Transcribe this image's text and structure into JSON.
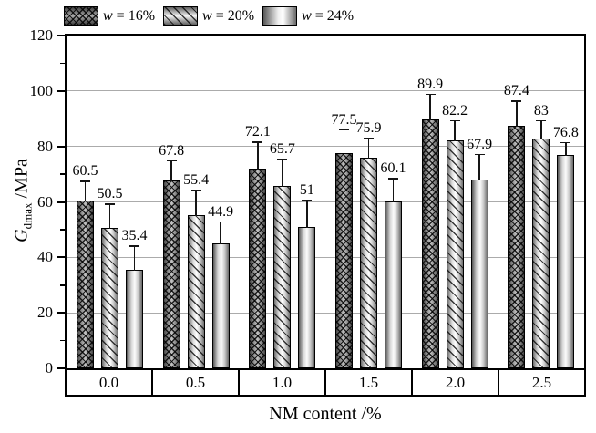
{
  "chart_data": {
    "type": "bar",
    "title": "",
    "xlabel": "NM content /%",
    "ylabel": {
      "main": "G",
      "sub": "dmax",
      "unit": " /MPa"
    },
    "categories": [
      "0.0",
      "0.5",
      "1.0",
      "1.5",
      "2.0",
      "2.5"
    ],
    "series": [
      {
        "name": "w = 16%",
        "pattern": "crosshatch",
        "values": [
          60.5,
          67.8,
          72.1,
          77.5,
          89.9,
          87.4
        ],
        "labels": [
          "60.5",
          "67.8",
          "72.1",
          "77.5",
          "89.9",
          "87.4"
        ],
        "errors": [
          7,
          7,
          9.5,
          8.5,
          9,
          9
        ]
      },
      {
        "name": "w = 20%",
        "pattern": "diagonal",
        "values": [
          50.5,
          55.4,
          65.7,
          75.9,
          82.2,
          83
        ],
        "labels": [
          "50.5",
          "55.4",
          "65.7",
          "75.9",
          "82.2",
          "83"
        ],
        "errors": [
          8.7,
          9,
          9.7,
          7,
          7.1,
          6.3
        ]
      },
      {
        "name": "w = 24%",
        "pattern": "cylinder",
        "values": [
          35.4,
          44.9,
          51,
          60.1,
          67.9,
          76.8
        ],
        "labels": [
          "35.4",
          "44.9",
          "51",
          "60.1",
          "67.9",
          "76.8"
        ],
        "errors": [
          8.8,
          8,
          9.6,
          8.4,
          9.3,
          4.7
        ]
      }
    ],
    "ylim": [
      0,
      120
    ],
    "ytick_step": 20,
    "yminor_step": 10,
    "ytick_labels": [
      "0",
      "20",
      "40",
      "60",
      "80",
      "100",
      "120"
    ],
    "grid": "horizontal-major",
    "legend_position": "top-left",
    "colors": {
      "axis": "#000000",
      "grid": "#ababab",
      "bar_edge": "#000000",
      "background": "#ffffff"
    }
  }
}
